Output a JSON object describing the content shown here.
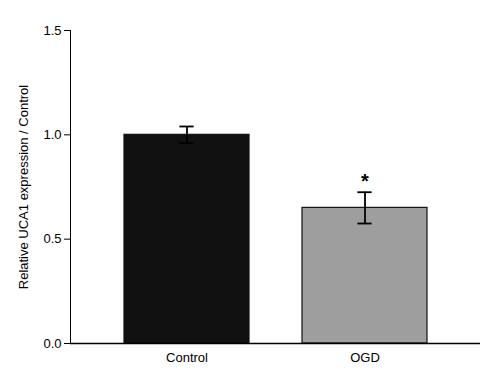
{
  "chart_data": {
    "type": "bar",
    "categories": [
      "Control",
      "OGD"
    ],
    "values": [
      1.0,
      0.65
    ],
    "errors": [
      0.04,
      0.075
    ],
    "colors": [
      "#111111",
      "#9e9e9e"
    ],
    "ylabel": "Relative UCA1 expression / Control",
    "ylim": [
      0,
      1.5
    ],
    "yticks": [
      {
        "value": 0,
        "label": "0.0"
      },
      0.5,
      {
        "value": 1,
        "label": "1.0"
      },
      1.5
    ],
    "significance": [
      null,
      "*"
    ],
    "grid": false
  }
}
